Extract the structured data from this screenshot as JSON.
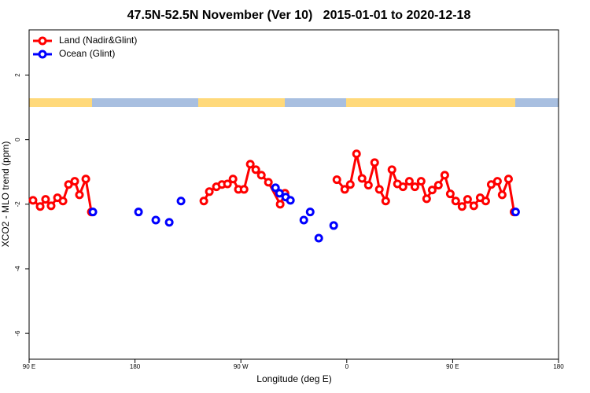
{
  "chart_data": {
    "type": "line",
    "title": "47.5N-52.5N November (Ver 10)   2015-01-01 to 2020-12-18",
    "x_label": "Longitude (deg E)",
    "y_label": "XCO2 - MLO trend (ppm)",
    "xlim": [
      90,
      540
    ],
    "ylim": [
      -6.8,
      3.4
    ],
    "xticks": [
      {
        "value": 90,
        "label": "90 E"
      },
      180,
      {
        "value": 270,
        "label": "90 W"
      },
      {
        "value": 360,
        "label": "0"
      },
      {
        "value": 450,
        "label": "90 E"
      },
      {
        "value": 540,
        "label": "180"
      }
    ],
    "yticks": [
      2,
      0,
      -2,
      -4,
      -6
    ],
    "legend": "top-left",
    "series": [
      {
        "name": "Land (Nadir&Glint)",
        "color": "#ff0000",
        "line": true,
        "x": [
          93.3,
          99.4,
          104.0,
          108.7,
          114.1,
          118.8,
          123.5,
          128.8,
          132.8,
          138.2,
          142.9,
          null,
          238.5,
          243.2,
          249.2,
          253.9,
          258.6,
          263.3,
          267.9,
          272.7,
          278.0,
          282.7,
          287.4,
          293.4,
          303.4,
          307.5,
          null,
          351.6,
          358.3,
          363.0,
          368.3,
          373.0,
          378.4,
          383.7,
          387.7,
          393.1,
          398.4,
          403.1,
          407.8,
          413.2,
          417.9,
          423.2,
          427.9,
          432.6,
          437.9,
          443.3,
          448.0,
          452.6,
          458.0,
          462.7,
          468.0,
          473.4,
          478.1,
          482.8,
          488.1,
          492.1,
          497.5,
          502.2
        ],
        "values": [
          -1.88,
          -2.07,
          -1.85,
          -2.05,
          -1.8,
          -1.9,
          -1.39,
          -1.29,
          -1.71,
          -1.22,
          -2.24,
          null,
          -1.9,
          -1.61,
          -1.46,
          -1.39,
          -1.37,
          -1.22,
          -1.54,
          -1.54,
          -0.76,
          -0.93,
          -1.1,
          -1.32,
          -2.0,
          -1.66,
          null,
          -1.24,
          -1.54,
          -1.39,
          -0.44,
          -1.2,
          -1.41,
          -0.71,
          -1.54,
          -1.9,
          -0.93,
          -1.37,
          -1.46,
          -1.29,
          -1.46,
          -1.29,
          -1.83,
          -1.56,
          -1.41,
          -1.1,
          -1.68,
          -1.9,
          -2.07,
          -1.85,
          -2.05,
          -1.8,
          -1.9,
          -1.39,
          -1.29,
          -1.71,
          -1.22,
          -2.24
        ]
      },
      {
        "name": "Ocean (Glint)",
        "color": "#0000ff",
        "line": false,
        "x": [
          144.2,
          183.0,
          197.7,
          209.1,
          219.1,
          299.4,
          302.8,
          308.1,
          312.1,
          323.5,
          328.9,
          336.2,
          348.9,
          503.5
        ],
        "values": [
          -2.24,
          -2.24,
          -2.49,
          -2.56,
          -1.9,
          -1.49,
          -1.66,
          -1.78,
          -1.88,
          -2.49,
          -2.24,
          -3.05,
          -2.66,
          -2.24
        ]
      }
    ]
  }
}
